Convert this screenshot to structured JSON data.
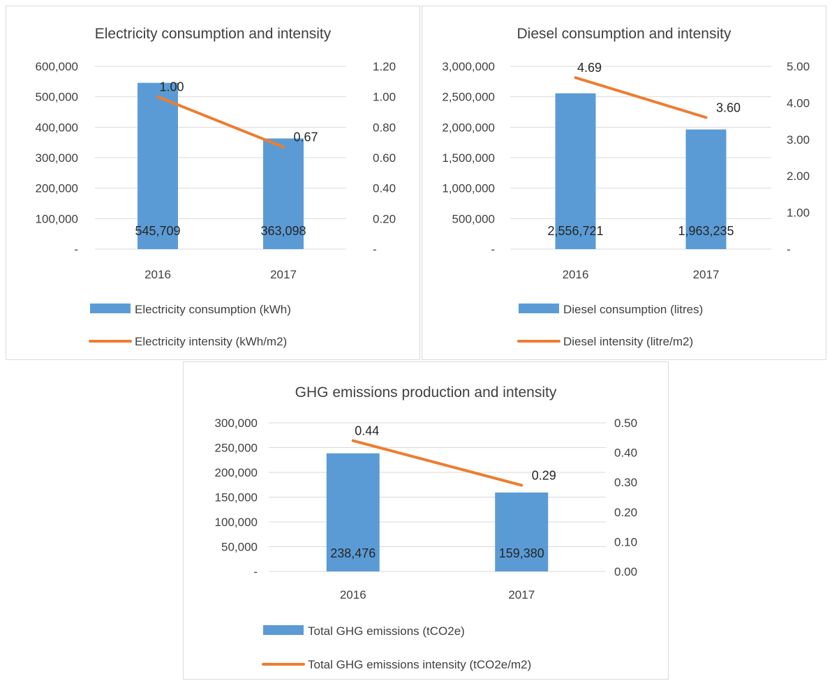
{
  "chart_data": [
    {
      "type": "bar",
      "title": "Electricity consumption and intensity",
      "categories": [
        "2016",
        "2017"
      ],
      "series": [
        {
          "name": "Electricity consumption (kWh)",
          "type": "bar",
          "axis": "left",
          "values": [
            545709,
            363098
          ],
          "labels": [
            "545,709",
            "363,098"
          ]
        },
        {
          "name": "Electricity intensity (kWh/m2)",
          "type": "line",
          "axis": "right",
          "values": [
            1.0,
            0.67
          ],
          "labels": [
            "1.00",
            "0.67"
          ]
        }
      ],
      "y_left": {
        "ticks": [
          "-",
          "100,000",
          "200,000",
          "300,000",
          "400,000",
          "500,000",
          "600,000"
        ],
        "ylim": [
          0,
          600000
        ]
      },
      "y_right": {
        "ticks": [
          "-",
          "0.20",
          "0.40",
          "0.60",
          "0.80",
          "1.00",
          "1.20"
        ],
        "ylim": [
          0,
          1.2
        ]
      },
      "grid": true,
      "legend": "bottom",
      "colors": {
        "bar": "#5b9bd5",
        "line": "#ed7d31"
      }
    },
    {
      "type": "bar",
      "title": "Diesel consumption and intensity",
      "categories": [
        "2016",
        "2017"
      ],
      "series": [
        {
          "name": "Diesel consumption (litres)",
          "type": "bar",
          "axis": "left",
          "values": [
            2556721,
            1963235
          ],
          "labels": [
            "2,556,721",
            "1,963,235"
          ]
        },
        {
          "name": "Diesel intensity (litre/m2)",
          "type": "line",
          "axis": "right",
          "values": [
            4.69,
            3.6
          ],
          "labels": [
            "4.69",
            "3.60"
          ]
        }
      ],
      "y_left": {
        "ticks": [
          "-",
          "500,000",
          "1,000,000",
          "1,500,000",
          "2,000,000",
          "2,500,000",
          "3,000,000"
        ],
        "ylim": [
          0,
          3000000
        ]
      },
      "y_right": {
        "ticks": [
          "-",
          "1.00",
          "2.00",
          "3.00",
          "4.00",
          "5.00"
        ],
        "ylim": [
          0,
          5
        ]
      },
      "grid": true,
      "legend": "bottom",
      "colors": {
        "bar": "#5b9bd5",
        "line": "#ed7d31"
      }
    },
    {
      "type": "bar",
      "title": "GHG emissions production and intensity",
      "categories": [
        "2016",
        "2017"
      ],
      "series": [
        {
          "name": "Total GHG emissions (tCO2e)",
          "type": "bar",
          "axis": "left",
          "values": [
            238476,
            159380
          ],
          "labels": [
            "238,476",
            "159,380"
          ]
        },
        {
          "name": "Total GHG emissions intensity (tCO2e/m2)",
          "type": "line",
          "axis": "right",
          "values": [
            0.44,
            0.29
          ],
          "labels": [
            "0.44",
            "0.29"
          ]
        }
      ],
      "y_left": {
        "ticks": [
          "-",
          "50,000",
          "100,000",
          "150,000",
          "200,000",
          "250,000",
          "300,000"
        ],
        "ylim": [
          0,
          300000
        ]
      },
      "y_right": {
        "ticks": [
          "0.00",
          "0.10",
          "0.20",
          "0.30",
          "0.40",
          "0.50"
        ],
        "ylim": [
          0,
          0.5
        ]
      },
      "grid": true,
      "legend": "bottom",
      "colors": {
        "bar": "#5b9bd5",
        "line": "#ed7d31"
      }
    }
  ]
}
